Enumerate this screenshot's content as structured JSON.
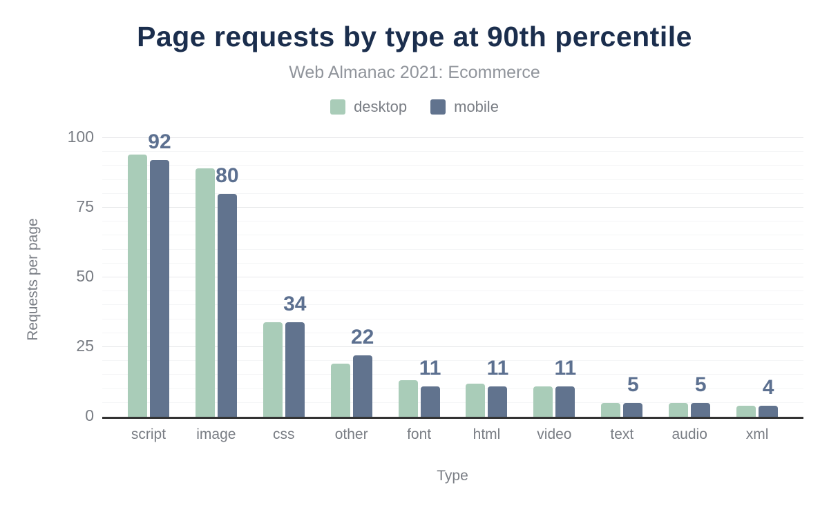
{
  "chart": {
    "title": "Page requests by type at 90th percentile",
    "subtitle": "Web Almanac 2021: Ecommerce"
  },
  "chart_data": {
    "type": "bar",
    "categories": [
      "script",
      "image",
      "css",
      "other",
      "font",
      "html",
      "video",
      "text",
      "audio",
      "xml"
    ],
    "series": [
      {
        "name": "desktop",
        "color": "#a9ccb8",
        "values": [
          94,
          89,
          34,
          19,
          13,
          12,
          11,
          5,
          5,
          4
        ]
      },
      {
        "name": "mobile",
        "color": "#61738e",
        "values": [
          92,
          80,
          34,
          22,
          11,
          11,
          11,
          5,
          5,
          4
        ]
      }
    ],
    "data_labels": [
      "92",
      "80",
      "34",
      "22",
      "11",
      "11",
      "11",
      "5",
      "5",
      "4"
    ],
    "data_labels_series": "mobile",
    "title": "Page requests by type at 90th percentile",
    "subtitle": "Web Almanac 2021: Ecommerce",
    "xlabel": "Type",
    "ylabel": "Requests per page",
    "ylim": [
      0,
      100
    ],
    "yticks": [
      0,
      25,
      50,
      75,
      100
    ],
    "minor_gridline_step": 5,
    "major_gridline_step": 25,
    "grid": true,
    "legend_position": "top"
  },
  "colors": {
    "title": "#1b2e4d",
    "subtitle": "#90949b",
    "axis_text": "#797d84",
    "data_label": "#5c7090",
    "baseline": "#333333",
    "grid_major": "#e7e8ea",
    "grid_minor": "#f4f5f6",
    "desktop": "#a9ccb8",
    "mobile": "#61738e"
  }
}
